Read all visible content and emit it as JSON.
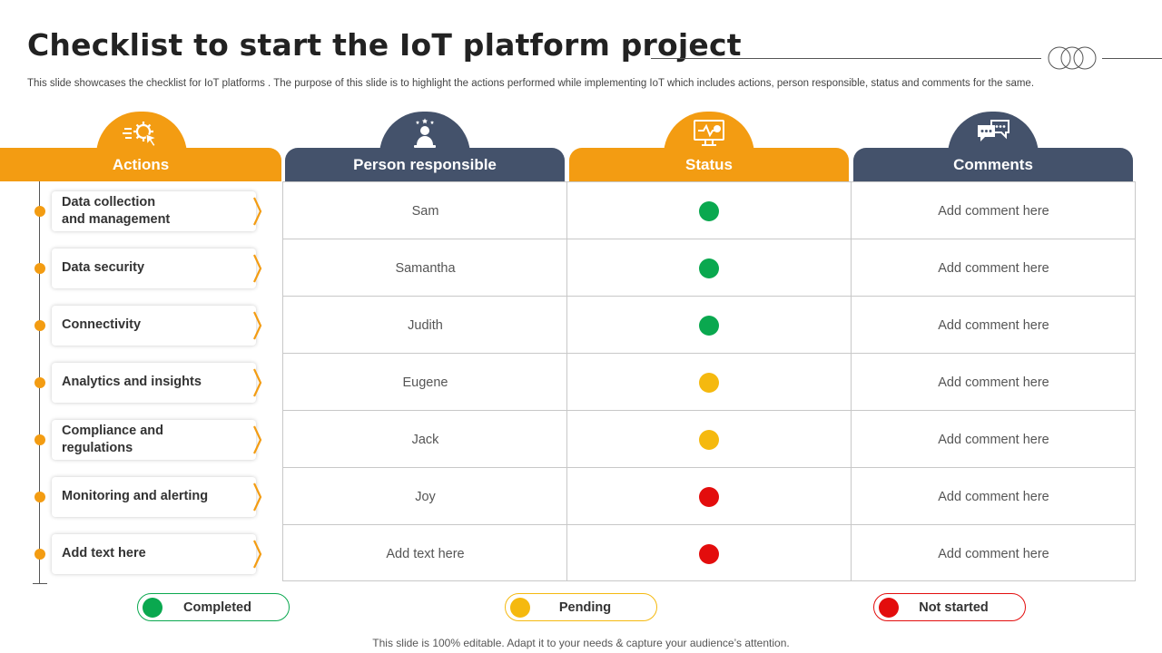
{
  "slide": {
    "title": "Checklist to start the IoT platform project",
    "subtitle": "This slide showcases the checklist for IoT platforms . The purpose of this slide is to highlight the actions performed while implementing IoT which includes actions, person responsible, status and comments for the same.",
    "footer": "This slide is 100% editable. Adapt it to your needs & capture your audience’s attention."
  },
  "columns": [
    {
      "label": "Actions",
      "icon": "gear-cursor-icon",
      "color": "#f39c12"
    },
    {
      "label": "Person responsible",
      "icon": "person-stars-icon",
      "color": "#44526b"
    },
    {
      "label": "Status",
      "icon": "monitor-status-icon",
      "color": "#f39c12"
    },
    {
      "label": "Comments",
      "icon": "chat-bubbles-icon",
      "color": "#44526b"
    }
  ],
  "rows": [
    {
      "action": "Data collection\nand management",
      "person": "Sam",
      "status": "completed",
      "comment": "Add comment here"
    },
    {
      "action": "Data security",
      "person": "Samantha",
      "status": "completed",
      "comment": "Add comment here"
    },
    {
      "action": "Connectivity",
      "person": "Judith",
      "status": "completed",
      "comment": "Add comment here"
    },
    {
      "action": "Analytics and insights",
      "person": "Eugene",
      "status": "pending",
      "comment": "Add comment here"
    },
    {
      "action": "Compliance and regulations",
      "person": "Jack",
      "status": "pending",
      "comment": "Add comment here"
    },
    {
      "action": "Monitoring and alerting",
      "person": "Joy",
      "status": "not_started",
      "comment": "Add comment here"
    },
    {
      "action": "Add text here",
      "person": "Add text here",
      "status": "not_started",
      "comment": "Add comment here"
    }
  ],
  "status_colors": {
    "completed": "#0aa84f",
    "pending": "#f5b90f",
    "not_started": "#e30d0d"
  },
  "legend": [
    {
      "label": "Completed",
      "status": "completed",
      "border": "#0aa84f"
    },
    {
      "label": "Pending",
      "status": "pending",
      "border": "#f5b90f"
    },
    {
      "label": "Not started",
      "status": "not_started",
      "border": "#e30d0d"
    }
  ]
}
